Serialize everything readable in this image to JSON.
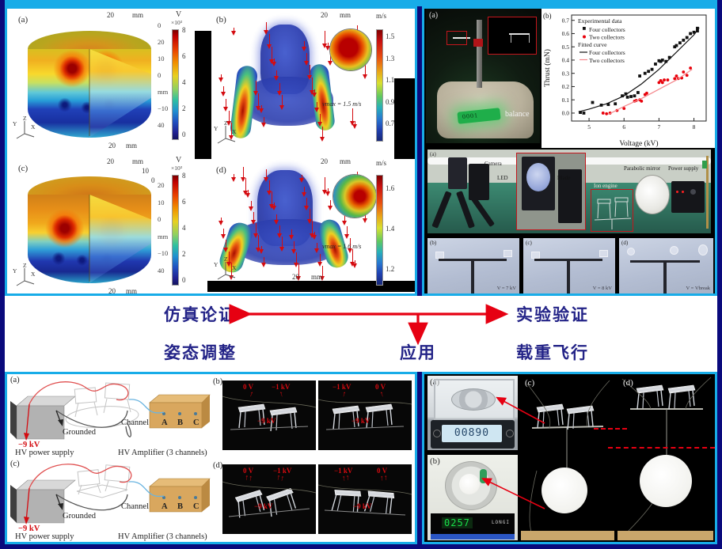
{
  "accent": {
    "cyan": "#18ace8",
    "navy": "#0a0a7c",
    "red": "#e60012",
    "blue_text": "#232387"
  },
  "tl": {
    "a": {
      "label": "(a)",
      "top_axis": "20",
      "top_unit": "mm",
      "right_ticks": [
        "0",
        "20",
        "10",
        "0",
        "mm",
        "−10",
        "40"
      ],
      "bottom_axis": "20",
      "bottom_unit": "mm",
      "cb_title": "V",
      "cb_scale": "×10³",
      "cb_ticks": [
        "8",
        "6",
        "4",
        "2",
        "0"
      ],
      "triad": [
        "Z",
        "Y",
        "X"
      ]
    },
    "b": {
      "label": "(b)",
      "top_axis": "20",
      "top_unit": "mm",
      "vmax": "vmax = 1.5 m/s",
      "cb_title": "m/s",
      "cb_ticks": [
        "1.5",
        "1.3",
        "1.1",
        "0.9",
        "0.7"
      ],
      "triad": [
        "Z",
        "Y",
        "X"
      ]
    },
    "c": {
      "label": "(c)",
      "top_axis": "20",
      "top_unit": "mm",
      "top_extra": [
        "10",
        "0"
      ],
      "right_ticks": [
        "20",
        "10",
        "0",
        "mm",
        "−10",
        "40"
      ],
      "bottom_axis": "20",
      "bottom_unit": "mm",
      "cb_title": "V",
      "cb_scale": "×10³",
      "cb_ticks": [
        "8",
        "6",
        "4",
        "2",
        "0"
      ],
      "triad": [
        "Z",
        "Y",
        "X"
      ]
    },
    "d": {
      "label": "(d)",
      "top_axis": "20",
      "top_unit": "mm",
      "vmax": "vmax = 1.6 m/s",
      "cb_title": "m/s",
      "cb_ticks": [
        "1.6",
        "1.4",
        "1.2"
      ],
      "bottom_axis": "20",
      "bottom_unit": "mm",
      "triad": [
        "Z",
        "Y",
        "X"
      ]
    }
  },
  "mid": {
    "sim": "仿真论证",
    "exp": "实验验证",
    "attitude": "姿态调整",
    "app": "应用",
    "load": "载重飞行"
  },
  "tr": {
    "photo_label": "(a)",
    "balance_label": "balance",
    "setup": {
      "label": "(a)",
      "camera": "Camera",
      "led": "LED",
      "blade": "Blade",
      "ion_engine": "Ion engine",
      "mirror": "Parabolic mirror",
      "power": "Power supply"
    },
    "schlieren": [
      {
        "label": "(b)",
        "caption": "V = 7 kV"
      },
      {
        "label": "(c)",
        "caption": "V = 8 kV"
      },
      {
        "label": "(d)",
        "caption": "V = Vbreak"
      }
    ]
  },
  "chart_data": {
    "type": "scatter",
    "panel_label": "(b)",
    "title": "",
    "xlabel": "Voltage (kV)",
    "ylabel": "Thrust (mN)",
    "xlim": [
      4.5,
      8.35
    ],
    "ylim": [
      -0.06,
      0.74
    ],
    "xticks": [
      "5",
      "6",
      "7",
      "8"
    ],
    "yticks": [
      "0.0",
      "0.1",
      "0.2",
      "0.3",
      "0.4",
      "0.5",
      "0.6",
      "0.7"
    ],
    "legend": {
      "exp_title": "Experimental data",
      "fit_title": "Fitted curve",
      "four": "Four collectors",
      "two": "Two collectors",
      "position": "top-left"
    },
    "grid": false,
    "series": [
      {
        "name": "Four collectors",
        "kind": "scatter",
        "marker": "square",
        "color": "#111111",
        "points": [
          [
            4.75,
            0.005
          ],
          [
            4.85,
            0.0
          ],
          [
            5.1,
            0.08
          ],
          [
            5.35,
            0.06
          ],
          [
            5.55,
            0.065
          ],
          [
            5.75,
            0.07
          ],
          [
            5.95,
            0.13
          ],
          [
            6.05,
            0.145
          ],
          [
            6.1,
            0.12
          ],
          [
            6.2,
            0.125
          ],
          [
            6.3,
            0.13
          ],
          [
            6.4,
            0.155
          ],
          [
            6.45,
            0.28
          ],
          [
            6.6,
            0.3
          ],
          [
            6.7,
            0.315
          ],
          [
            6.8,
            0.33
          ],
          [
            6.9,
            0.37
          ],
          [
            7.0,
            0.395
          ],
          [
            7.05,
            0.39
          ],
          [
            7.1,
            0.4
          ],
          [
            7.2,
            0.39
          ],
          [
            7.3,
            0.42
          ],
          [
            7.45,
            0.5
          ],
          [
            7.5,
            0.51
          ],
          [
            7.6,
            0.53
          ],
          [
            7.7,
            0.55
          ],
          [
            7.8,
            0.57
          ],
          [
            7.9,
            0.6
          ],
          [
            8.0,
            0.61
          ],
          [
            8.1,
            0.64
          ],
          [
            8.1,
            0.62
          ]
        ]
      },
      {
        "name": "Two collectors",
        "kind": "scatter",
        "marker": "circle",
        "color": "#e8000a",
        "points": [
          [
            5.4,
            0.0
          ],
          [
            5.5,
            -0.005
          ],
          [
            5.6,
            0.0
          ],
          [
            5.8,
            0.02
          ],
          [
            6.0,
            0.035
          ],
          [
            6.3,
            0.09
          ],
          [
            6.35,
            0.095
          ],
          [
            6.45,
            0.1
          ],
          [
            6.5,
            0.09
          ],
          [
            6.6,
            0.14
          ],
          [
            6.65,
            0.15
          ],
          [
            7.0,
            0.23
          ],
          [
            7.05,
            0.245
          ],
          [
            7.1,
            0.23
          ],
          [
            7.15,
            0.25
          ],
          [
            7.25,
            0.25
          ],
          [
            7.45,
            0.26
          ],
          [
            7.5,
            0.28
          ],
          [
            7.55,
            0.26
          ],
          [
            7.65,
            0.265
          ],
          [
            7.7,
            0.31
          ],
          [
            7.8,
            0.285
          ],
          [
            7.9,
            0.34
          ]
        ]
      },
      {
        "name": "Four collectors",
        "kind": "line",
        "color": "#111111",
        "points": [
          [
            4.7,
            0.01
          ],
          [
            5.0,
            0.03
          ],
          [
            5.5,
            0.07
          ],
          [
            6.0,
            0.13
          ],
          [
            6.5,
            0.22
          ],
          [
            7.0,
            0.33
          ],
          [
            7.5,
            0.46
          ],
          [
            8.0,
            0.59
          ],
          [
            8.15,
            0.645
          ]
        ]
      },
      {
        "name": "Two collectors",
        "kind": "line",
        "color": "#f4878c",
        "points": [
          [
            5.55,
            -0.01
          ],
          [
            6.0,
            0.05
          ],
          [
            6.5,
            0.11
          ],
          [
            7.0,
            0.18
          ],
          [
            7.5,
            0.25
          ],
          [
            7.95,
            0.33
          ]
        ]
      }
    ]
  },
  "bl": {
    "diag_a": {
      "label": "(a)",
      "neg9": "−9 kV",
      "grounded": "Grounded",
      "supply": "HV power supply",
      "channel": "Channel",
      "ch": [
        "A",
        "B",
        "C"
      ],
      "amp": "HV Amplifier (3 channels)"
    },
    "diag_c": {
      "label": "(c)",
      "neg9": "−9 kV",
      "grounded": "Grounded",
      "supply": "HV power supply",
      "channel": "Channel",
      "ch": [
        "A",
        "B",
        "C"
      ],
      "amp": "HV Amplifier (3 channels)"
    },
    "photos_b": {
      "label": "(b)",
      "left": [
        "0 V",
        "−1 kV",
        "−9 kV"
      ],
      "right": [
        "−1 kV",
        "0 V",
        "−9 kV"
      ]
    },
    "photos_d": {
      "label": "(d)",
      "left": [
        "0 V",
        "−1 kV",
        "−9 kV"
      ],
      "right": [
        "−1 kV",
        "0 V",
        "−9 kV"
      ]
    }
  },
  "br": {
    "a": {
      "label": "(a)",
      "display": "00890"
    },
    "b": {
      "label": "(b)",
      "display": "0257",
      "brand": "LONGI"
    },
    "c": {
      "label": "(c)"
    },
    "d": {
      "label": "(d)"
    }
  }
}
